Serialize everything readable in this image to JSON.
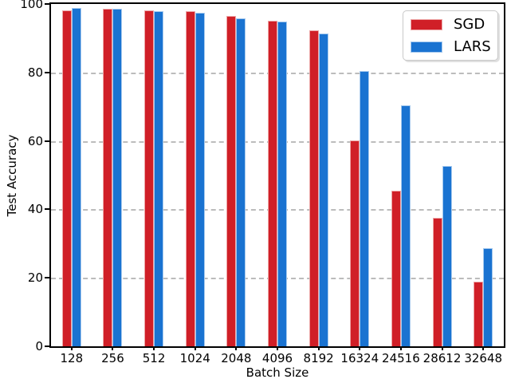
{
  "chart_data": {
    "type": "bar",
    "title": "",
    "xlabel": "Batch Size",
    "ylabel": "Test Accuracy",
    "categories": [
      "128",
      "256",
      "512",
      "1024",
      "2048",
      "4096",
      "8192",
      "16324",
      "24516",
      "28612",
      "32648"
    ],
    "series": [
      {
        "name": "SGD",
        "color": "#d01f27",
        "edge_color": "#eda6a6",
        "values": [
          98.2,
          98.5,
          98.2,
          97.9,
          96.5,
          95.2,
          92.4,
          60.2,
          45.4,
          37.5,
          18.9
        ]
      },
      {
        "name": "LARS",
        "color": "#1a73d1",
        "edge_color": "#a5c9ee",
        "values": [
          98.8,
          98.5,
          97.9,
          97.5,
          95.9,
          94.9,
          91.3,
          80.5,
          70.4,
          52.6,
          28.7
        ]
      }
    ],
    "ylim": [
      0,
      100
    ],
    "yticks": [
      0,
      20,
      40,
      60,
      80,
      100
    ],
    "grid_levels": [
      20,
      40,
      60,
      80
    ],
    "grid": "horizontal-dashed",
    "legend_position": "upper-right",
    "grid_color": "#bcbcbc"
  }
}
